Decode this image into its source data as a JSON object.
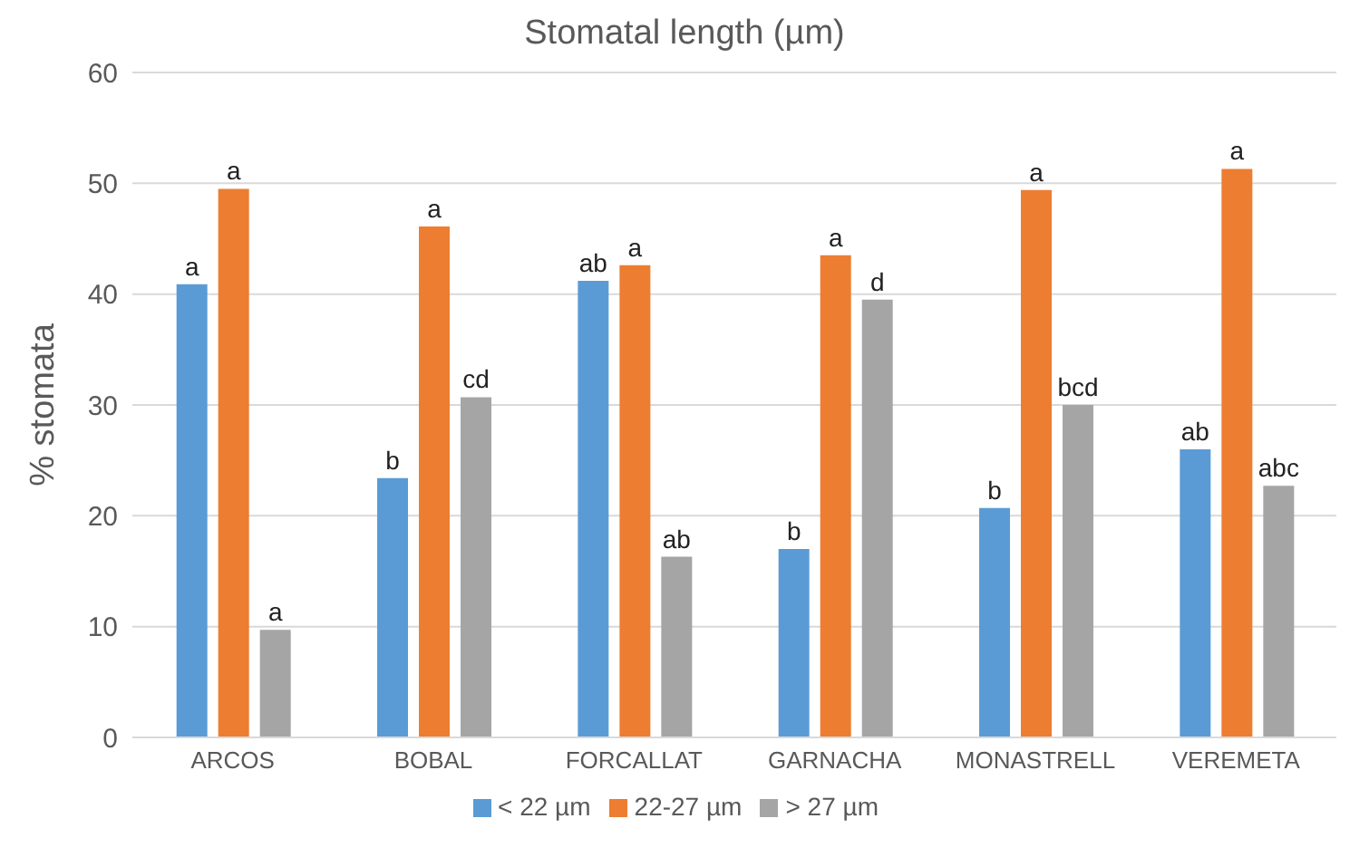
{
  "chart_data": {
    "type": "bar",
    "title": "Stomatal length (µm)",
    "ylabel": "% stomata",
    "categories": [
      "ARCOS",
      "BOBAL",
      "FORCALLAT",
      "GARNACHA",
      "MONASTRELL",
      "VEREMETA"
    ],
    "series": [
      {
        "name": "< 22 µm",
        "color": "#5b9bd5",
        "values": [
          40.9,
          23.4,
          41.2,
          17.0,
          20.7,
          26.0
        ],
        "value_labels": [
          "a",
          "b",
          "ab",
          "b",
          "b",
          "ab"
        ]
      },
      {
        "name": "22-27 µm",
        "color": "#ed7d31",
        "values": [
          49.5,
          46.1,
          42.6,
          43.5,
          49.4,
          51.3
        ],
        "value_labels": [
          "a",
          "a",
          "a",
          "a",
          "a",
          "a"
        ]
      },
      {
        "name": "> 27 µm",
        "color": "#a5a5a5",
        "values": [
          9.7,
          30.7,
          16.3,
          39.5,
          30.0,
          22.7
        ],
        "value_labels": [
          "a",
          "cd",
          "ab",
          "d",
          "bcd",
          "abc"
        ]
      }
    ],
    "ylim": [
      0,
      60
    ],
    "yticks": [
      0,
      10,
      20,
      30,
      40,
      50,
      60
    ],
    "grid": "y",
    "legend": "bottom"
  }
}
